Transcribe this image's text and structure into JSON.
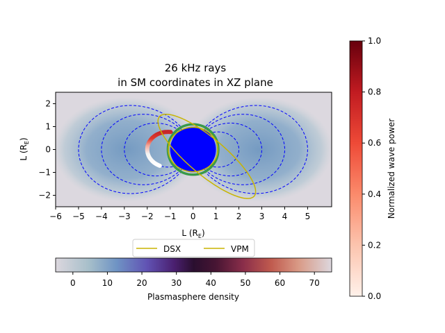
{
  "chart_data": [
    {
      "type": "line",
      "title_lines": [
        "26 kHz rays",
        "in SM coordinates in XZ plane"
      ],
      "xlabel_main": "L (R",
      "xlabel_sub": "E",
      "ylabel_main": "L (R",
      "ylabel_sub": "E",
      "xlim": [
        -6,
        6
      ],
      "ylim": [
        -2.5,
        2.5
      ],
      "xticks": [
        -6,
        -5,
        -4,
        -3,
        -2,
        -1,
        0,
        1,
        2,
        3,
        4,
        5
      ],
      "xtick_labels": [
        "−6",
        "−5",
        "−4",
        "−3",
        "−2",
        "−1",
        "0",
        "1",
        "2",
        "3",
        "4",
        "5"
      ],
      "yticks": [
        -2,
        -1,
        0,
        1,
        2
      ],
      "ytick_labels": [
        "−2",
        "−1",
        "0",
        "1",
        "2"
      ],
      "legend": {
        "placement": "below-axes",
        "entries": [
          {
            "label": "DSX",
            "color": "#c8b400"
          },
          {
            "label": "VPM",
            "color": "#c8b400"
          }
        ]
      },
      "earth": {
        "radius": 1,
        "fill": "#0000ff",
        "ring_color": "#3a9a4a"
      },
      "field_lines_L": [
        2,
        3,
        4,
        5
      ],
      "field_line_color": "#0000ff",
      "orbits": [
        {
          "name": "DSX",
          "color": "#c8b400",
          "center": [
            0.6,
            -0.3
          ],
          "semi_major": 2.7,
          "semi_minor": 0.8,
          "tilt_deg": -40
        },
        {
          "name": "VPM",
          "color": "#c8b400",
          "center": [
            0.0,
            0.0
          ],
          "semi_major": 1.08,
          "semi_minor": 0.97,
          "tilt_deg": 0
        }
      ],
      "ray_L": 2.0,
      "ray_lat_range_deg": [
        -26,
        38
      ],
      "grid": false
    },
    {
      "type": "heatmap",
      "role": "colorbar",
      "label": "Plasmasphere density",
      "ticks": [
        0,
        10,
        20,
        30,
        40,
        50,
        60,
        70
      ],
      "range": [
        -5,
        75
      ],
      "orientation": "horizontal"
    },
    {
      "type": "heatmap",
      "role": "colorbar",
      "label": "Normalized wave power",
      "ticks": [
        0.0,
        0.2,
        0.4,
        0.6,
        0.8,
        1.0
      ],
      "tick_labels": [
        "0.0",
        "0.2",
        "0.4",
        "0.6",
        "0.8",
        "1.0"
      ],
      "range": [
        0,
        1
      ],
      "orientation": "vertical"
    }
  ]
}
